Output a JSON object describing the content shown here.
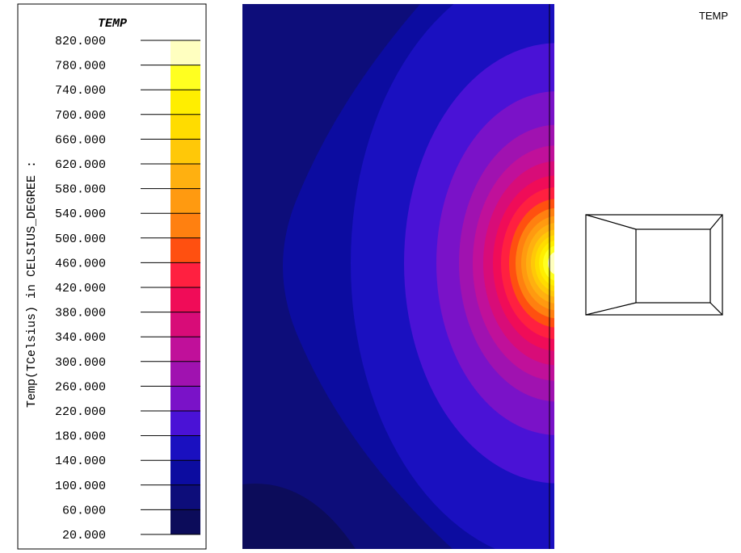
{
  "legend": {
    "title": "TEMP",
    "axis_label": "Temp(TCelsius) in CELSIUS_DEGREE :",
    "ticks": [
      "820.000",
      "780.000",
      "740.000",
      "700.000",
      "660.000",
      "620.000",
      "580.000",
      "540.000",
      "500.000",
      "460.000",
      "420.000",
      "380.000",
      "340.000",
      "300.000",
      "260.000",
      "220.000",
      "180.000",
      "140.000",
      "100.000",
      "60.000",
      "20.000"
    ],
    "colors": [
      "#ffffc0",
      "#ffff20",
      "#ffee00",
      "#ffdc00",
      "#ffc808",
      "#ffb010",
      "#ff9a10",
      "#ff8010",
      "#ff5010",
      "#ff2040",
      "#f00c58",
      "#d80c78",
      "#c0109a",
      "#a012b0",
      "#7a12c8",
      "#4a12d6",
      "#1a10c0",
      "#0c0ca0",
      "#0d0d7a",
      "#0c0c5a"
    ]
  },
  "corner_label": "TEMP"
}
